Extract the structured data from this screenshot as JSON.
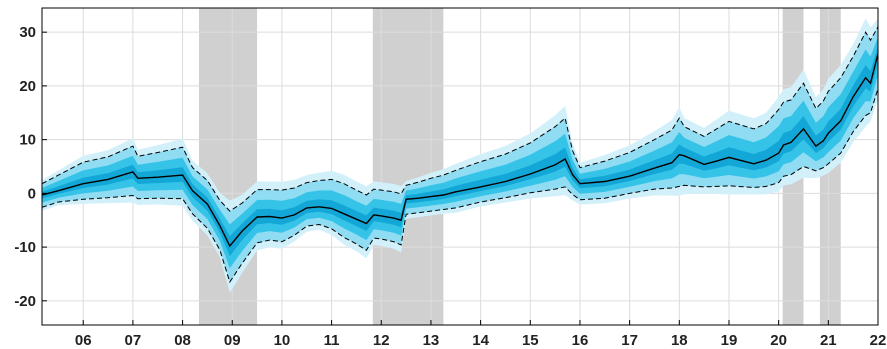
{
  "chart_data": {
    "type": "area",
    "title": "",
    "xlabel": "",
    "ylabel": "",
    "xlim": [
      2005.17,
      2022.0
    ],
    "ylim": [
      -24.5,
      34.5
    ],
    "grid": true,
    "legend": "none",
    "x_ticks": [
      {
        "value": 2006,
        "label": "06"
      },
      {
        "value": 2007,
        "label": "07"
      },
      {
        "value": 2008,
        "label": "08"
      },
      {
        "value": 2009,
        "label": "09"
      },
      {
        "value": 2010,
        "label": "10"
      },
      {
        "value": 2011,
        "label": "11"
      },
      {
        "value": 2012,
        "label": "12"
      },
      {
        "value": 2013,
        "label": "13"
      },
      {
        "value": 2014,
        "label": "14"
      },
      {
        "value": 2015,
        "label": "15"
      },
      {
        "value": 2016,
        "label": "16"
      },
      {
        "value": 2017,
        "label": "17"
      },
      {
        "value": 2018,
        "label": "18"
      },
      {
        "value": 2019,
        "label": "19"
      },
      {
        "value": 2020,
        "label": "20"
      },
      {
        "value": 2021,
        "label": "21"
      },
      {
        "value": 2022,
        "label": "22"
      }
    ],
    "y_ticks": [
      {
        "value": -20,
        "label": "-20"
      },
      {
        "value": -10,
        "label": "-10"
      },
      {
        "value": 0,
        "label": "0"
      },
      {
        "value": 10,
        "label": "10"
      },
      {
        "value": 20,
        "label": "20"
      },
      {
        "value": 30,
        "label": "30"
      }
    ],
    "shaded_periods": [
      {
        "start": 2008.33,
        "end": 2009.5
      },
      {
        "start": 2011.83,
        "end": 2013.25
      },
      {
        "start": 2020.08,
        "end": 2020.5
      },
      {
        "start": 2020.83,
        "end": 2021.25
      }
    ],
    "colors": {
      "median": "#000000",
      "bounds": "#000000",
      "fan_outer": "#d2f0fa",
      "fan_mid": "#8fdcf3",
      "fan_inner": "#36c3e8",
      "fan_core": "#12a7d6",
      "shading": "#d0d0d0"
    },
    "x": [
      2005.17,
      2005.5,
      2006.0,
      2006.5,
      2007.0,
      2007.1,
      2007.5,
      2008.0,
      2008.2,
      2008.5,
      2008.75,
      2008.95,
      2009.2,
      2009.5,
      2009.75,
      2010.0,
      2010.25,
      2010.5,
      2010.75,
      2011.0,
      2011.25,
      2011.5,
      2011.7,
      2011.85,
      2012.0,
      2012.25,
      2012.4,
      2012.5,
      2012.75,
      2013.0,
      2013.25,
      2013.5,
      2014.0,
      2014.5,
      2015.0,
      2015.5,
      2015.7,
      2015.85,
      2016.0,
      2016.5,
      2017.0,
      2017.5,
      2017.85,
      2018.0,
      2018.1,
      2018.5,
      2018.75,
      2019.0,
      2019.5,
      2019.75,
      2020.0,
      2020.1,
      2020.25,
      2020.5,
      2020.75,
      2020.9,
      2021.0,
      2021.25,
      2021.5,
      2021.75,
      2021.85,
      2022.0
    ],
    "series": [
      {
        "role": "median",
        "values": [
          -0.3,
          0.5,
          1.8,
          2.6,
          4.0,
          2.8,
          3.0,
          3.4,
          0.5,
          -2.0,
          -6.0,
          -9.8,
          -7.0,
          -4.4,
          -4.3,
          -4.6,
          -4.0,
          -2.7,
          -2.5,
          -2.8,
          -3.8,
          -4.8,
          -5.6,
          -4.0,
          -4.2,
          -4.6,
          -5.0,
          -1.1,
          -0.9,
          -0.6,
          -0.3,
          0.3,
          1.2,
          2.2,
          3.6,
          5.3,
          6.4,
          3.5,
          1.8,
          2.2,
          3.2,
          4.7,
          5.7,
          7.2,
          7.0,
          5.4,
          6.0,
          6.7,
          5.5,
          6.2,
          7.5,
          9.0,
          9.5,
          12.0,
          8.8,
          9.8,
          11.2,
          13.5,
          18.0,
          21.5,
          20.5,
          26.0
        ]
      },
      {
        "role": "upper_bound",
        "values": [
          1.8,
          3.4,
          5.8,
          6.8,
          8.8,
          6.9,
          7.6,
          8.6,
          4.8,
          2.4,
          -1.3,
          -3.3,
          -1.8,
          0.7,
          0.7,
          0.6,
          1.0,
          2.0,
          2.4,
          2.6,
          1.8,
          0.6,
          -0.3,
          0.8,
          0.6,
          0.3,
          -0.1,
          1.5,
          2.1,
          2.8,
          3.4,
          4.3,
          5.9,
          7.3,
          9.4,
          12.4,
          14.0,
          8.0,
          4.8,
          6.0,
          7.6,
          10.0,
          11.8,
          14.0,
          12.4,
          10.6,
          12.0,
          13.4,
          12.0,
          13.0,
          15.6,
          17.0,
          17.4,
          20.5,
          15.8,
          17.2,
          19.0,
          21.5,
          25.5,
          30.0,
          28.5,
          31.0
        ]
      },
      {
        "role": "lower_bound",
        "values": [
          -2.6,
          -1.6,
          -1.1,
          -0.8,
          -0.4,
          -1.0,
          -0.9,
          -1.0,
          -3.8,
          -6.5,
          -10.5,
          -16.5,
          -13.0,
          -9.2,
          -8.7,
          -9.0,
          -7.8,
          -6.1,
          -5.8,
          -6.6,
          -8.2,
          -9.4,
          -10.6,
          -8.3,
          -8.5,
          -9.0,
          -9.6,
          -3.9,
          -3.6,
          -3.3,
          -3.0,
          -2.7,
          -1.6,
          -0.8,
          0.1,
          0.8,
          1.2,
          -0.2,
          -1.2,
          -0.9,
          0.0,
          0.8,
          1.0,
          1.3,
          1.5,
          1.2,
          1.3,
          1.4,
          1.1,
          1.3,
          2.0,
          3.2,
          3.5,
          5.0,
          4.2,
          4.8,
          5.5,
          7.5,
          11.5,
          14.5,
          15.0,
          19.5
        ]
      }
    ]
  }
}
